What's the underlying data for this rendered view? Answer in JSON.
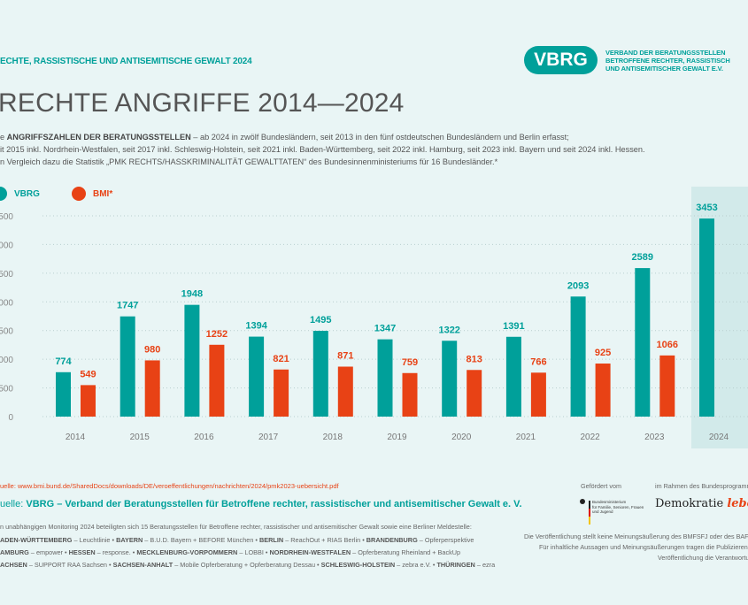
{
  "header": {
    "kicker": "ECHTE, RASSISTISCHE UND ANTISEMITISCHE GEWALT 2024",
    "logo": "VBRG",
    "logo_text": [
      "VERBAND DER BERATUNGSSTELLEN",
      "BETROFFENE RECHTER, RASSISTISCH",
      "UND ANTISEMITISCHER GEWALT E.V."
    ],
    "title": "RECHTE ANGRIFFE 2014—2024"
  },
  "intro": {
    "line1_prefix": "e ",
    "line1_bold": "ANGRIFFSZAHLEN DER BERATUNGSSTELLEN",
    "line1_rest": " – ab 2024 in zwölf Bundesländern, seit 2013 in den fünf ostdeutschen Bundesländern und Berlin erfasst;",
    "line2": "it 2015 inkl. Nordrhein-Westfalen, seit 2017 inkl. Schleswig-Holstein, seit 2021 inkl. Baden-Württemberg, seit 2022 inkl. Hamburg, seit 2023 inkl. Bayern und seit 2024 inkl. Hessen.",
    "line3": "n Vergleich dazu die Statistik „PMK RECHTS/HASSKRIMINALITÄT GEWALTTATEN“ des Bundesinnenministeriums für 16 Bundesländer.*"
  },
  "chart_data": {
    "type": "bar",
    "categories": [
      "2014",
      "2015",
      "2016",
      "2017",
      "2018",
      "2019",
      "2020",
      "2021",
      "2022",
      "2023",
      "2024"
    ],
    "series": [
      {
        "name": "VBRG",
        "color": "#00a09a",
        "values": [
          774,
          1747,
          1948,
          1394,
          1495,
          1347,
          1322,
          1391,
          2093,
          2589,
          3453
        ]
      },
      {
        "name": "BMI*",
        "color": "#e84215",
        "values": [
          549,
          980,
          1252,
          821,
          871,
          759,
          813,
          766,
          925,
          1066,
          null
        ]
      }
    ],
    "yticks": [
      "0",
      "500",
      "1000",
      "1500",
      "2000",
      "2500",
      "3000",
      "3500"
    ],
    "ylim": [
      0,
      3500
    ],
    "grid": true,
    "legend": "top-left",
    "highlight_category": "2024",
    "highlight_color": "#d2eaea"
  },
  "footer": {
    "source_bmi": "uelle: www.bmi.bund.de/SharedDocs/downloads/DE/veroeffentlichungen/nachrichten/2024/pmk2023-uebersicht.pdf",
    "source_vbrg_prefix": "uelle: ",
    "source_vbrg": "VBRG – Verband der Beratungsstellen für Betroffene rechter, rassistischer und antisemitischer Gewalt e. V.",
    "monitoring": "n unabhängigen Monitoring 2024 beteiligten sich 15 Beratungsstellen für Betroffene rechter, rassistischer und antisemitischer Gewalt sowie eine Berliner Meldestelle:",
    "lines": [
      [
        [
          "ADEN-WÜRTTEMBERG",
          " – Leuchtlinie • "
        ],
        [
          "BAYERN",
          " – B.U.D. Bayern + BEFORE München • "
        ],
        [
          "BERLIN",
          " – ReachOut + RIAS Berlin • "
        ],
        [
          "BRANDENBURG",
          " – Opferperspektive"
        ]
      ],
      [
        [
          "AMBURG",
          " – empower • "
        ],
        [
          "HESSEN",
          " – response. • "
        ],
        [
          "MECKLENBURG-VORPOMMERN",
          " – LOBBI • "
        ],
        [
          "NORDRHEIN-WESTFALEN",
          " – Opferberatung Rheinland + BackUp"
        ]
      ],
      [
        [
          "ACHSEN",
          " – SUPPORT RAA Sachsen • "
        ],
        [
          "SACHSEN-ANHALT",
          " – Mobile Opferberatung + Opferberatung Dessau • "
        ],
        [
          "SCHLESWIG-HOLSTEIN",
          " – zebra e.V. • "
        ],
        [
          "THÜRINGEN",
          " – ezra"
        ]
      ]
    ],
    "funded_by": "Gefördert vom",
    "program": "im Rahmen des Bundesprogramm",
    "ministry": [
      "Bundesministerium",
      "für Familie, Senioren, Frauen",
      "und Jugend"
    ],
    "demokratie": "Demokratie",
    "leben": "leben",
    "disclaimer": [
      "Die Veröffentlichung stellt keine Meinungsäußerung des BMFSFJ oder des BAFzA d",
      "Für inhaltliche Aussagen und Meinungsäußerungen tragen die Publizierenden die",
      "Veröffentlichung die Verantwortu"
    ]
  }
}
